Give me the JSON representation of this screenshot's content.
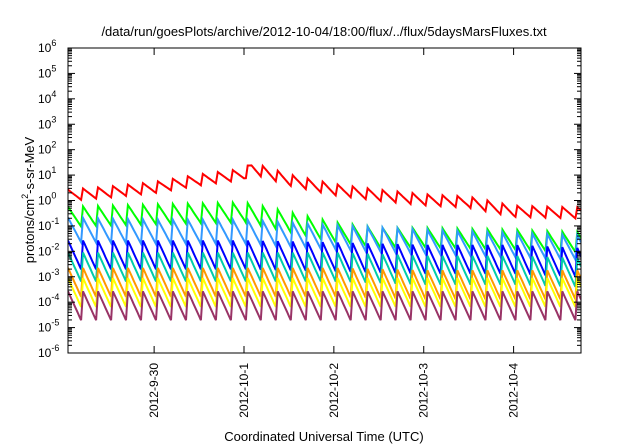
{
  "chart_data": {
    "type": "line",
    "title": "/data/run/goesPlots/archive/2012-10-04/18:00/flux/../flux/5daysMarsFluxes.txt",
    "xlabel": "Coordinated Universal Time (UTC)",
    "ylabel_base": "protons/cm",
    "ylabel_exp": "2",
    "ylabel_rest": "-s-sr-MeV",
    "yscale": "log",
    "ylim": [
      1e-06,
      1000000.0
    ],
    "y_ticks": [
      {
        "base": "10",
        "exp": "-6"
      },
      {
        "base": "10",
        "exp": "-5"
      },
      {
        "base": "10",
        "exp": "-4"
      },
      {
        "base": "10",
        "exp": "-3"
      },
      {
        "base": "10",
        "exp": "-2"
      },
      {
        "base": "10",
        "exp": "-1"
      },
      {
        "base": "10",
        "exp": "0"
      },
      {
        "base": "10",
        "exp": "1"
      },
      {
        "base": "10",
        "exp": "2"
      },
      {
        "base": "10",
        "exp": "3"
      },
      {
        "base": "10",
        "exp": "4"
      },
      {
        "base": "10",
        "exp": "5"
      },
      {
        "base": "10",
        "exp": "6"
      }
    ],
    "xlim": [
      "2012-09-29T01:00",
      "2012-10-04T18:00"
    ],
    "x_ticks": [
      "2012-9-30",
      "2012-10-1",
      "2012-10-2",
      "2012-10-3",
      "2012-10-4"
    ],
    "legend": "none",
    "grid": false,
    "series": [
      {
        "color": "#ff0000",
        "x": [
          "2012-09-29T01:00",
          "2012-09-29T12:00",
          "2012-09-30T00:00",
          "2012-09-30T12:00",
          "2012-10-01T00:00",
          "2012-10-01T02:00",
          "2012-10-01T12:00",
          "2012-10-02T00:00",
          "2012-10-02T12:00",
          "2012-10-03T00:00",
          "2012-10-03T12:00",
          "2012-10-04T00:00",
          "2012-10-04T18:00"
        ],
        "values": [
          1.5,
          2,
          3,
          6,
          10,
          18,
          6,
          2.5,
          1.5,
          1,
          0.8,
          0.35,
          0.3
        ]
      },
      {
        "color": "#00ff00",
        "x": [
          "2012-09-29T01:00",
          "2012-09-30T00:00",
          "2012-10-01T00:00",
          "2012-10-01T06:00",
          "2012-10-02T00:00",
          "2012-10-02T12:00",
          "2012-10-03T00:00",
          "2012-10-04T00:00",
          "2012-10-04T18:00"
        ],
        "values": [
          0.2,
          0.25,
          0.3,
          0.2,
          0.05,
          0.03,
          0.03,
          0.025,
          0.02
        ]
      },
      {
        "color": "#3399ff",
        "x": [
          "2012-09-29T01:00",
          "2012-09-30T00:00",
          "2012-10-01T00:00",
          "2012-10-02T00:00",
          "2012-10-03T00:00",
          "2012-10-04T00:00",
          "2012-10-04T18:00"
        ],
        "values": [
          0.06,
          0.05,
          0.05,
          0.03,
          0.02,
          0.015,
          0.012
        ]
      },
      {
        "color": "#0000ff",
        "x": [
          "2012-09-29T01:00",
          "2012-09-30T00:00",
          "2012-10-01T00:00",
          "2012-10-02T00:00",
          "2012-10-03T00:00",
          "2012-10-04T00:00",
          "2012-10-04T18:00"
        ],
        "values": [
          0.006,
          0.006,
          0.006,
          0.005,
          0.004,
          0.004,
          0.003
        ]
      },
      {
        "color": "#00ccaa",
        "x": [
          "2012-09-29T01:00",
          "2012-09-30T00:00",
          "2012-10-01T00:00",
          "2012-10-02T00:00",
          "2012-10-03T00:00",
          "2012-10-04T00:00",
          "2012-10-04T18:00"
        ],
        "values": [
          0.002,
          0.002,
          0.002,
          0.002,
          0.0015,
          0.0015,
          0.0012
        ]
      },
      {
        "color": "#ff9900",
        "x": [
          "2012-09-29T01:00",
          "2012-09-30T00:00",
          "2012-10-01T00:00",
          "2012-10-02T00:00",
          "2012-10-03T00:00",
          "2012-10-04T00:00",
          "2012-10-04T18:00"
        ],
        "values": [
          0.0005,
          0.0005,
          0.0005,
          0.0005,
          0.0004,
          0.0004,
          0.0004
        ]
      },
      {
        "color": "#ffff00",
        "x": [
          "2012-09-29T01:00",
          "2012-09-30T00:00",
          "2012-10-01T00:00",
          "2012-10-02T00:00",
          "2012-10-03T00:00",
          "2012-10-04T00:00",
          "2012-10-04T18:00"
        ],
        "values": [
          0.0002,
          0.0002,
          0.0002,
          0.0002,
          0.0002,
          0.0002,
          0.0002
        ]
      },
      {
        "color": "#993366",
        "x": [
          "2012-09-29T01:00",
          "2012-09-30T00:00",
          "2012-10-01T00:00",
          "2012-10-02T00:00",
          "2012-10-03T00:00",
          "2012-10-04T00:00",
          "2012-10-04T18:00"
        ],
        "values": [
          6e-05,
          6e-05,
          6e-05,
          6e-05,
          6e-05,
          6e-05,
          6e-05
        ]
      }
    ]
  }
}
